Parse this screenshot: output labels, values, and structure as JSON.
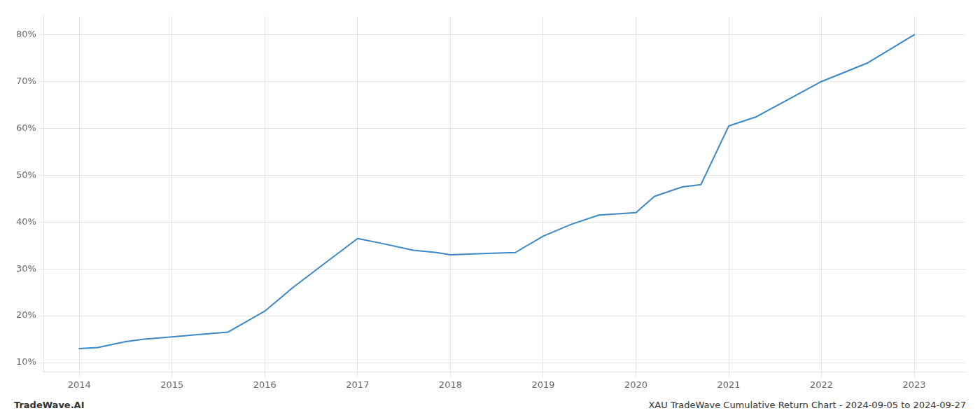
{
  "chart_data": {
    "type": "line",
    "x": [
      2014.0,
      2014.2,
      2014.5,
      2014.7,
      2015.0,
      2015.3,
      2015.6,
      2016.0,
      2016.3,
      2016.6,
      2017.0,
      2017.25,
      2017.6,
      2017.85,
      2018.0,
      2018.4,
      2018.7,
      2019.0,
      2019.3,
      2019.6,
      2020.0,
      2020.2,
      2020.5,
      2020.7,
      2021.0,
      2021.3,
      2022.0,
      2022.5,
      2023.0
    ],
    "values": [
      13.0,
      13.2,
      14.5,
      15.0,
      15.5,
      16.0,
      16.5,
      21.0,
      26.0,
      30.5,
      36.5,
      35.5,
      34.0,
      33.5,
      33.0,
      33.3,
      33.5,
      37.0,
      39.5,
      41.5,
      42.0,
      45.5,
      47.5,
      48.0,
      60.5,
      62.5,
      70.0,
      74.0,
      80.0
    ],
    "color": "#3a87c8",
    "xlim": [
      2013.62,
      2023.55
    ],
    "xticks": [
      2014,
      2015,
      2016,
      2017,
      2018,
      2019,
      2020,
      2021,
      2022,
      2023
    ],
    "ylim": [
      8,
      84
    ],
    "yticks": [
      {
        "value": 10,
        "label": "10%"
      },
      {
        "value": 20,
        "label": "20%"
      },
      {
        "value": 30,
        "label": "30%"
      },
      {
        "value": 40,
        "label": "40%"
      },
      {
        "value": 50,
        "label": "50%"
      },
      {
        "value": 60,
        "label": "60%"
      },
      {
        "value": 70,
        "label": "70%"
      },
      {
        "value": 80,
        "label": "80%"
      }
    ],
    "grid": true,
    "annotations": [
      "TradeWave.AI",
      "XAU TradeWave Cumulative Return Chart - 2024-09-05 to 2024-09-27"
    ]
  }
}
